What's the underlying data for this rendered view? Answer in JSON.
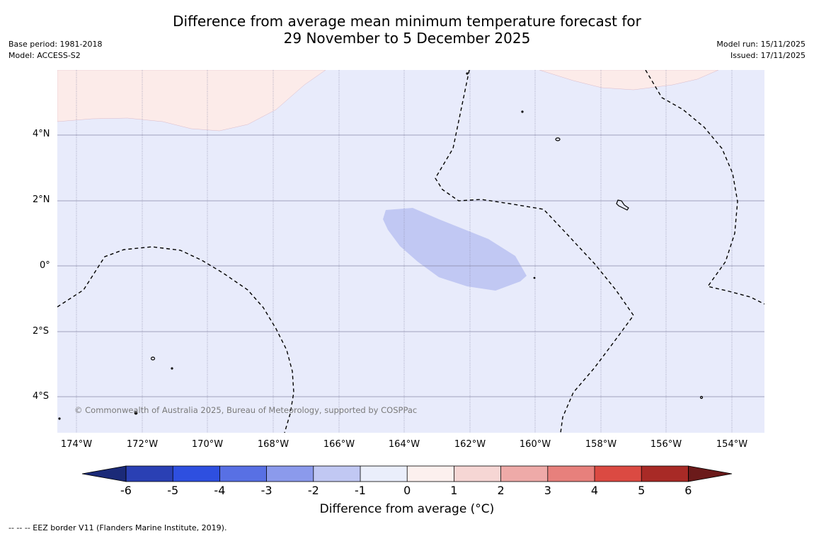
{
  "title": {
    "line1": "Difference from average mean minimum temperature forecast for",
    "line2": "29 November to 5 December 2025"
  },
  "meta": {
    "base_period": "Base period: 1981-2018",
    "model": "Model: ACCESS-S2",
    "model_run": "Model run: 15/11/2025",
    "issued": "Issued: 17/11/2025"
  },
  "map": {
    "lat_labels": [
      "4°N",
      "2°N",
      "0°",
      "2°S",
      "4°S"
    ],
    "lon_labels": [
      "174°W",
      "172°W",
      "170°W",
      "168°W",
      "166°W",
      "164°W",
      "162°W",
      "160°W",
      "158°W",
      "156°W",
      "154°W"
    ],
    "copyright": "© Commonwealth of Australia 2025, Bureau of Meteorology, supported by COSPPac",
    "colors": {
      "ocean_base": "#e8ebfb",
      "warm_anomaly": "#fcebe9",
      "cool_anomaly": "#c1c8f3",
      "grid": "#8a8aa8"
    }
  },
  "colorbar": {
    "ticks": [
      "-6",
      "-5",
      "-4",
      "-3",
      "-2",
      "-1",
      "0",
      "1",
      "2",
      "3",
      "4",
      "5",
      "6"
    ],
    "colors": [
      "#1b2a78",
      "#2a40b4",
      "#2e4fe0",
      "#5870e4",
      "#8b9aec",
      "#c1c8f3",
      "#eaeefb",
      "#fcf0ee",
      "#f6d6d4",
      "#eeaaa8",
      "#e7807c",
      "#db4a42",
      "#a82a26",
      "#6b1a1a"
    ],
    "title": "Difference from average ($^\\circ$C)",
    "title_display": "Difference from average (°C)"
  },
  "footnote": "--  --  -- EEZ border V11 (Flanders Marine Institute, 2019)."
}
